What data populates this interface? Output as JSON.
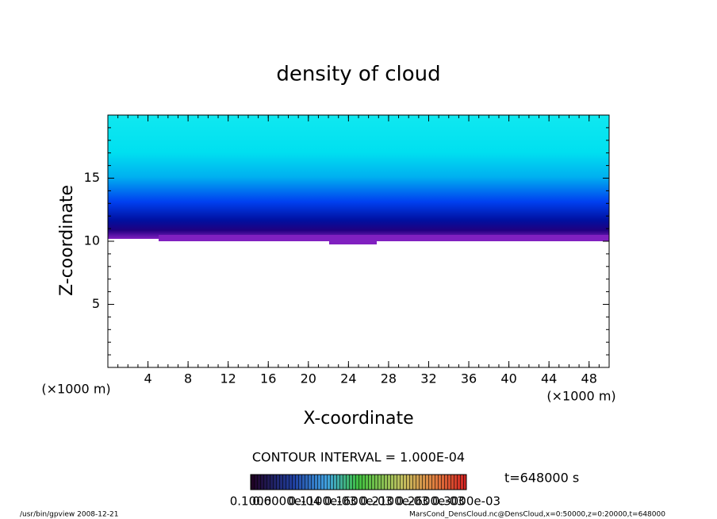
{
  "chart_data": {
    "type": "contour",
    "title": "density of cloud",
    "x_label": "X-coordinate",
    "y_label": "Z-coordinate",
    "x_unit_label": "(×1000 m)",
    "y_unit_label": "(×1000 m)",
    "xlim": [
      0,
      50
    ],
    "ylim": [
      0,
      20
    ],
    "xticks": [
      4,
      8,
      12,
      16,
      20,
      24,
      28,
      32,
      36,
      40,
      44,
      48
    ],
    "yticks": [
      5,
      10,
      15
    ],
    "contour_interval": "CONTOUR INTERVAL = 1.000E-04",
    "time_label": "t=648000 s",
    "colorbar_labels": [
      "0.1000",
      "0.6000e-04",
      "0.1100e-03",
      "0.1600e-03",
      "0.2100e-03",
      "0.2600e-03",
      "0.3000e-03"
    ],
    "footer_left": "/usr/bin/gpview   2008-12-21",
    "footer_right": "MarsCond_DensCloud.nc@DensCloud,x=0:50000,z=0:20000,t=648000"
  }
}
